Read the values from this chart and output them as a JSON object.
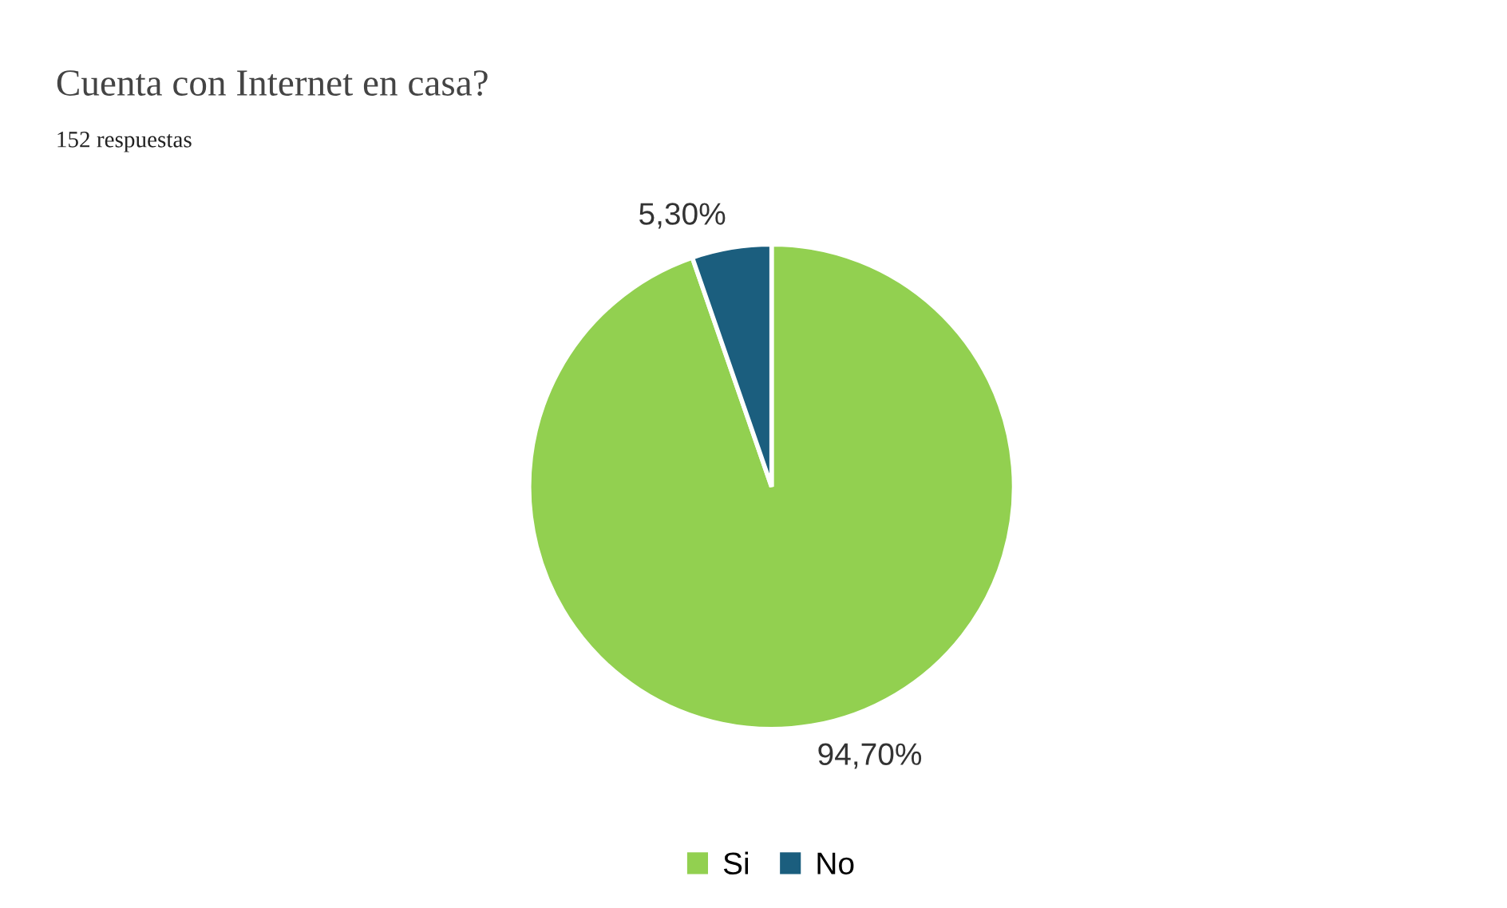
{
  "chart_data": {
    "type": "pie",
    "title": "Cuenta con Internet en casa?",
    "subtitle": "152 respuestas",
    "categories": [
      "Si",
      "No"
    ],
    "values": [
      94.7,
      5.3
    ],
    "colors": [
      "#92d050",
      "#1b5e7e"
    ],
    "value_labels": [
      "94,70%",
      "5,30%"
    ],
    "legend": "bottom"
  }
}
